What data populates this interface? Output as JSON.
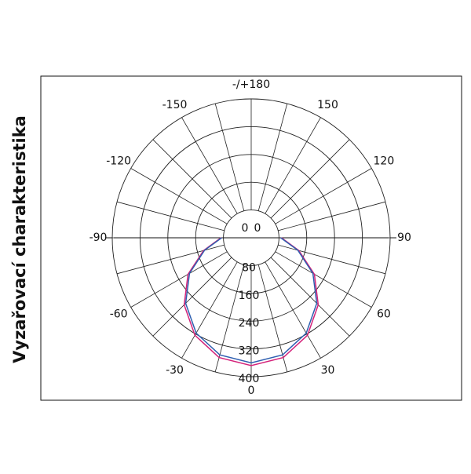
{
  "chart_data": {
    "type": "polar",
    "ylabel": "Vyzařovací charakteristika",
    "theta": [
      -90,
      -75,
      -60,
      -45,
      -30,
      -15,
      0,
      15,
      30,
      45,
      60,
      75,
      90
    ],
    "series": [
      {
        "color": "#d4237a",
        "values": [
          87,
          142,
          210,
          273,
          324,
          357,
          368,
          357,
          324,
          273,
          210,
          142,
          87
        ]
      },
      {
        "color": "#2f5fb0",
        "values": [
          85,
          139,
          205,
          267,
          317,
          349,
          360,
          349,
          317,
          267,
          205,
          139,
          85
        ]
      }
    ],
    "rlim": [
      0,
      400
    ],
    "rticks": [
      80,
      160,
      240,
      320,
      400
    ],
    "center_labels": [
      "0",
      "0"
    ],
    "thetaticks": [
      {
        "value": 180,
        "label": "-/+180"
      },
      -150,
      -120,
      -90,
      -60,
      -30,
      0,
      30,
      60,
      90,
      120,
      150
    ],
    "spoke_step": 15
  }
}
